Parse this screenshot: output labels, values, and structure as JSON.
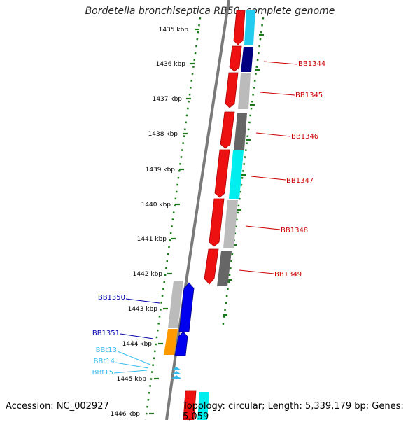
{
  "title": "Bordetella bronchiseptica RB50, complete genome",
  "footer": {
    "accession": "Accession: NC_002927",
    "summary": "Topology: circular; Length: 5,339,179 bp; Genes: 5,059"
  },
  "colors": {
    "ruler_ticks": "#1a7a1a",
    "backbone": "#808080",
    "forward_gene_label": "#cc0000",
    "reverse_gene_label": "#0000aa",
    "trna_label": "#33bbee"
  },
  "ruler": {
    "labels": [
      "1435 kbp",
      "1436 kbp",
      "1437 kbp",
      "1438 kbp",
      "1439 kbp",
      "1440 kbp",
      "1441 kbp",
      "1442 kbp",
      "1443 kbp",
      "1444 kbp",
      "1445 kbp",
      "1446 kbp"
    ]
  },
  "genes": {
    "forward": [
      "BB1344",
      "BB1345",
      "BB1346",
      "BB1347",
      "BB1348",
      "BB1349"
    ],
    "reverse": [
      "BB1350",
      "BB1351"
    ],
    "trna": [
      "BBt13",
      "BBt14",
      "BBt15"
    ]
  }
}
